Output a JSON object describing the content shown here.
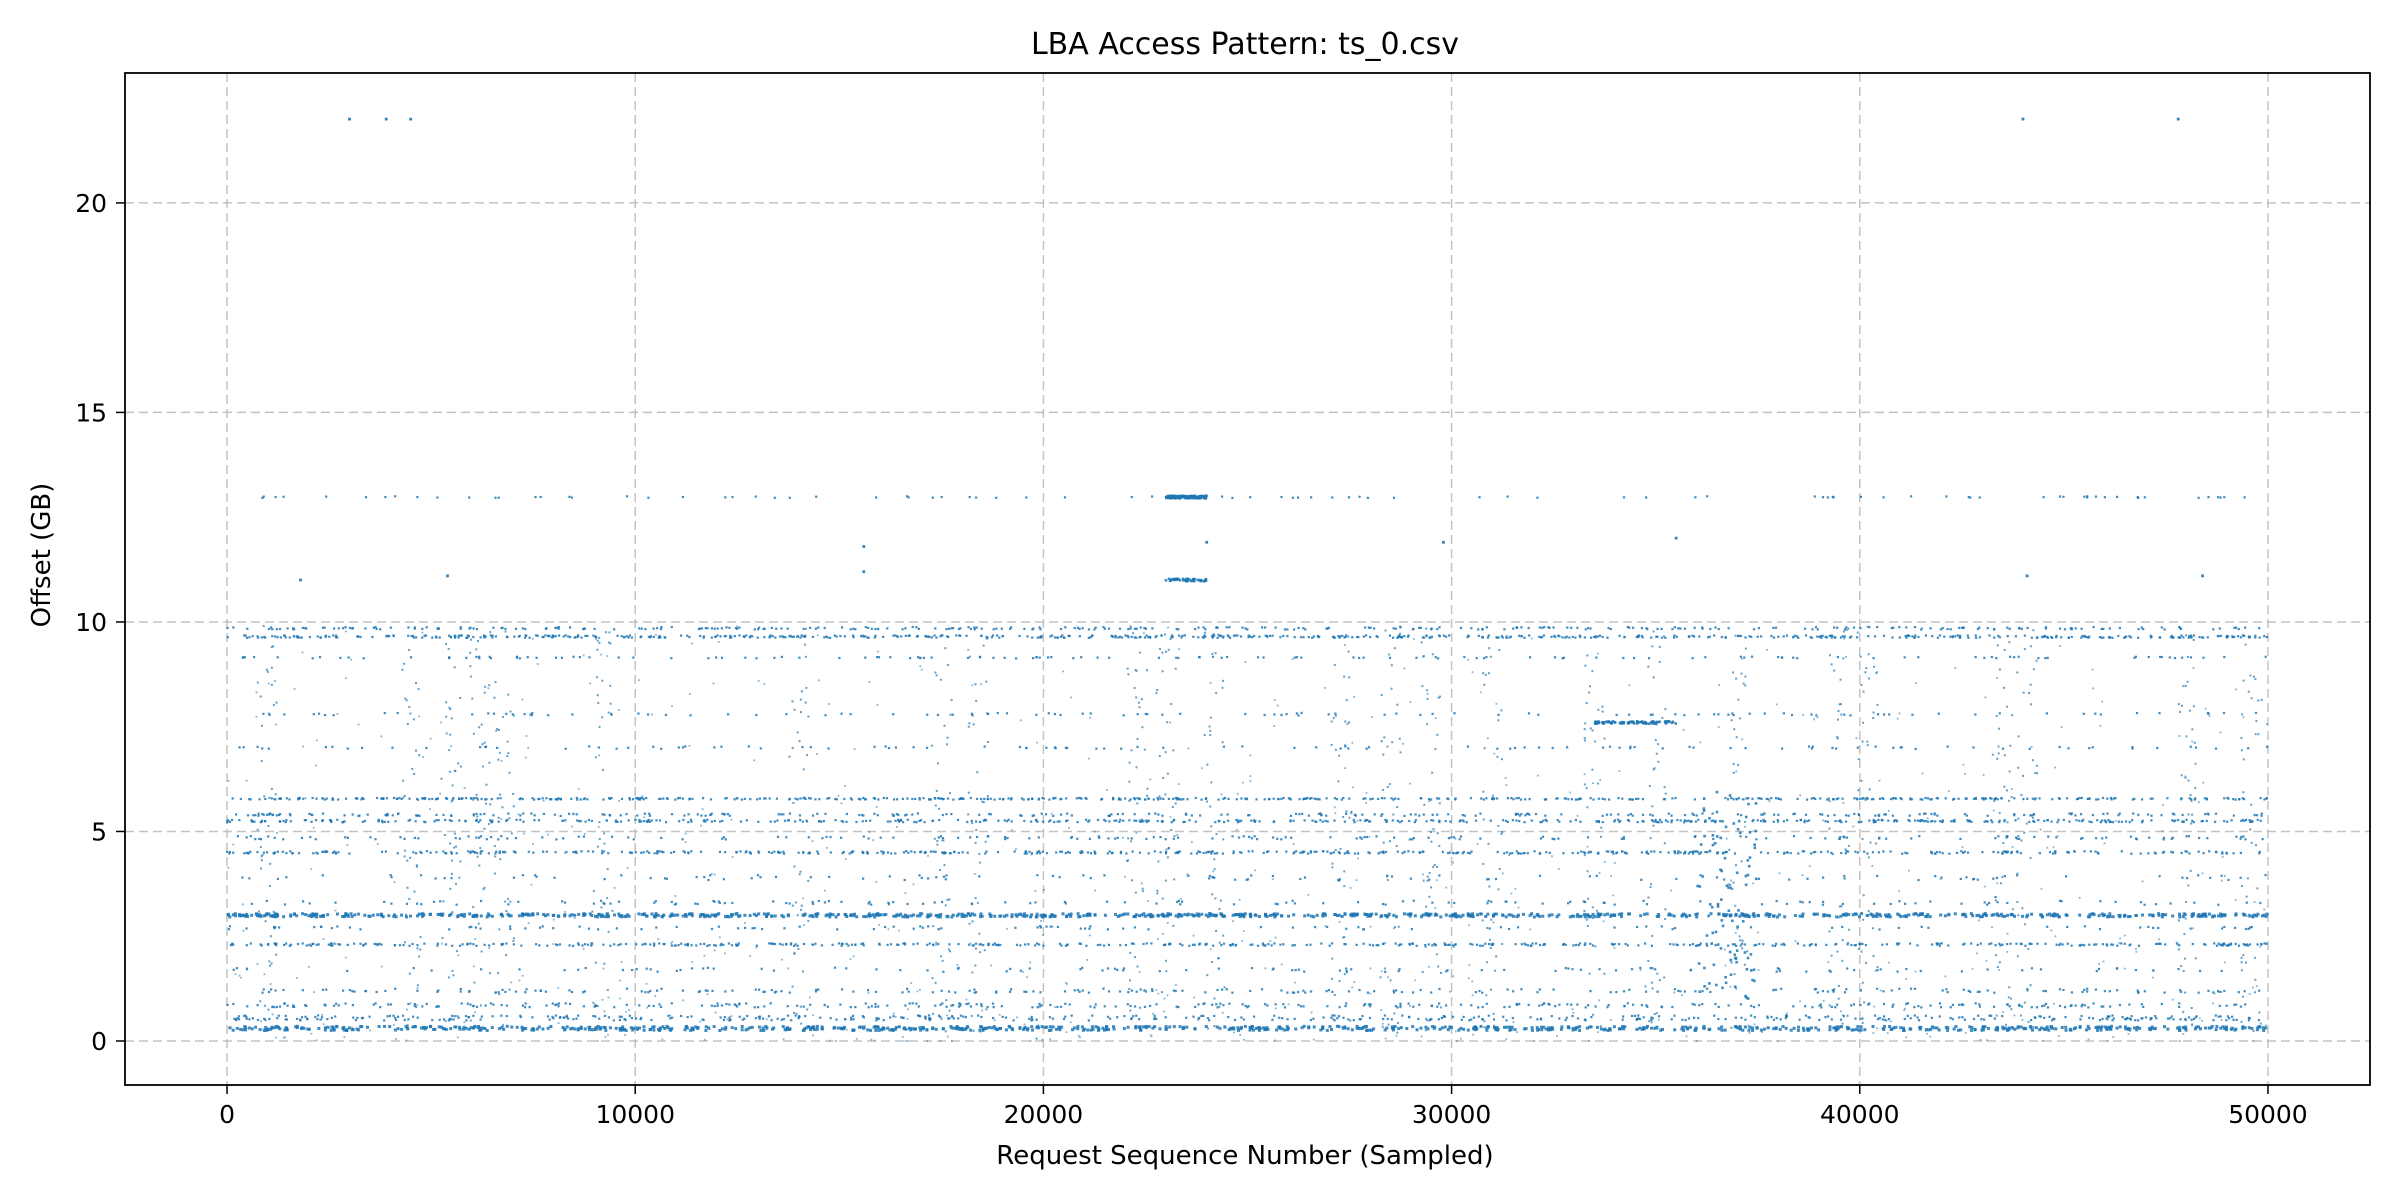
{
  "chart_data": {
    "type": "scatter",
    "title": "LBA Access Pattern: ts_0.csv",
    "xlabel": "Request Sequence Number (Sampled)",
    "ylabel": "Offset (GB)",
    "xlim": [
      -2500,
      52500
    ],
    "ylim": [
      -1.05,
      23.1
    ],
    "xticks": [
      {
        "value": 0,
        "label": "0"
      },
      {
        "value": 10000,
        "label": "10000"
      },
      {
        "value": 20000,
        "label": "20000"
      },
      {
        "value": 30000,
        "label": "30000"
      },
      {
        "value": 40000,
        "label": "40000"
      },
      {
        "value": 50000,
        "label": "50000"
      }
    ],
    "yticks": [
      {
        "value": 0,
        "label": "0"
      },
      {
        "value": 5,
        "label": "5"
      },
      {
        "value": 10,
        "label": "10"
      },
      {
        "value": 15,
        "label": "15"
      },
      {
        "value": 20,
        "label": "20"
      }
    ],
    "grid": true,
    "legend": "none",
    "marker_color": "#1f77b4",
    "x_range": [
      0,
      50000
    ],
    "series": [
      {
        "bands": [
          {
            "y": 0.3,
            "density": 0.95,
            "jitter": 0.05
          },
          {
            "y": 0.55,
            "density": 0.5,
            "jitter": 0.06
          },
          {
            "y": 0.85,
            "density": 0.35,
            "jitter": 0.05
          },
          {
            "y": 1.2,
            "density": 0.25,
            "jitter": 0.05
          },
          {
            "y": 1.7,
            "density": 0.12,
            "jitter": 0.05
          },
          {
            "y": 2.3,
            "density": 0.55,
            "jitter": 0.03
          },
          {
            "y": 2.7,
            "density": 0.12,
            "jitter": 0.04
          },
          {
            "y": 3.0,
            "density": 1.0,
            "jitter": 0.04
          },
          {
            "y": 3.3,
            "density": 0.15,
            "jitter": 0.05
          },
          {
            "y": 3.9,
            "density": 0.12,
            "jitter": 0.06
          },
          {
            "y": 4.5,
            "density": 0.55,
            "jitter": 0.03
          },
          {
            "y": 4.85,
            "density": 0.2,
            "jitter": 0.04
          },
          {
            "y": 5.25,
            "density": 0.55,
            "jitter": 0.03
          },
          {
            "y": 5.4,
            "density": 0.3,
            "jitter": 0.03
          },
          {
            "y": 5.78,
            "density": 0.6,
            "jitter": 0.02
          },
          {
            "y": 7.0,
            "density": 0.12,
            "jitter": 0.03
          },
          {
            "y": 7.8,
            "density": 0.12,
            "jitter": 0.03
          },
          {
            "y": 9.15,
            "density": 0.15,
            "jitter": 0.02
          },
          {
            "y": 9.65,
            "density": 0.7,
            "jitter": 0.03
          },
          {
            "y": 9.85,
            "density": 0.35,
            "jitter": 0.03
          },
          {
            "y": 12.98,
            "density": 0.1,
            "jitter": 0.02
          }
        ],
        "clusters": [
          {
            "x": [
              23000,
              24000
            ],
            "y": 12.98,
            "density": 0.9
          },
          {
            "x": [
              23000,
              24000
            ],
            "y": 11.0,
            "density": 0.3
          },
          {
            "x": [
              36000,
              37500
            ],
            "y": 3.5,
            "density": 0.6,
            "spread": 2.5
          },
          {
            "x": [
              33500,
              35500
            ],
            "y": 7.6,
            "density": 0.5
          }
        ],
        "outliers": [
          {
            "x": 3000,
            "y": 22.0
          },
          {
            "x": 3900,
            "y": 22.0
          },
          {
            "x": 4500,
            "y": 22.0
          },
          {
            "x": 44000,
            "y": 22.0
          },
          {
            "x": 47800,
            "y": 22.0
          },
          {
            "x": 15600,
            "y": 11.8
          },
          {
            "x": 15600,
            "y": 11.2
          },
          {
            "x": 24000,
            "y": 11.9
          },
          {
            "x": 29800,
            "y": 11.9
          },
          {
            "x": 35500,
            "y": 12.0
          },
          {
            "x": 5400,
            "y": 11.1
          },
          {
            "x": 44100,
            "y": 11.1
          },
          {
            "x": 48400,
            "y": 11.1
          },
          {
            "x": 1800,
            "y": 11.0
          }
        ]
      }
    ]
  }
}
